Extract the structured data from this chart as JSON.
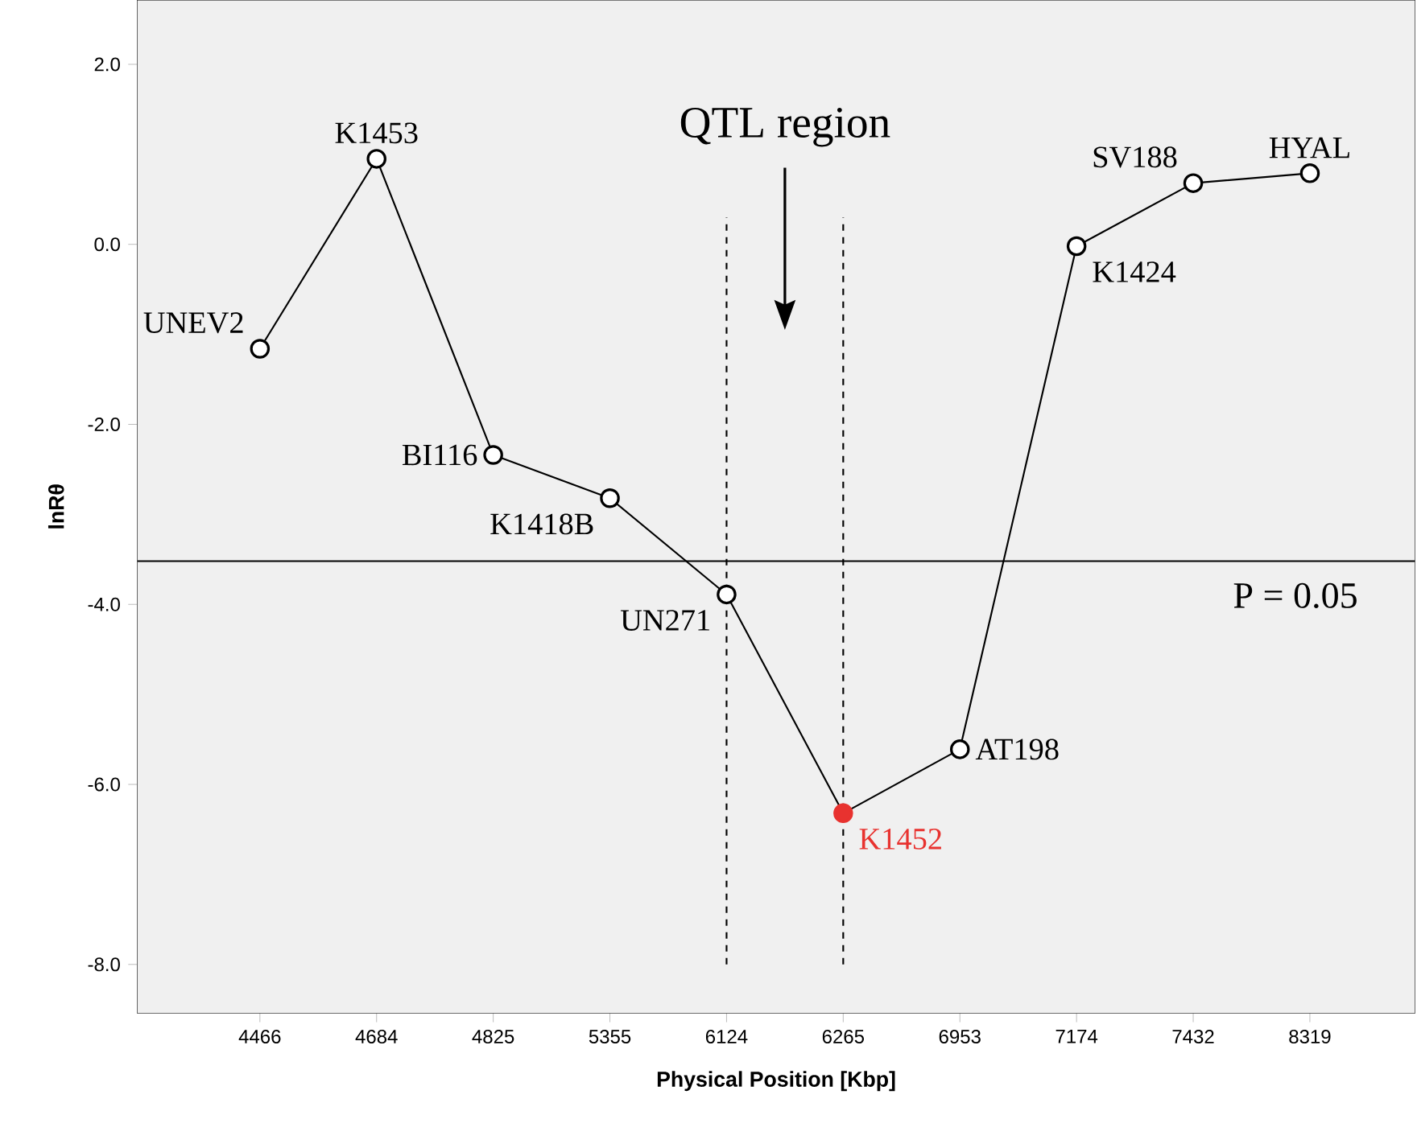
{
  "chart_data": {
    "type": "line",
    "xlabel": "Physical Position [Kbp]",
    "ylabel": "lnRθ",
    "categories": [
      "4466",
      "4684",
      "4825",
      "5355",
      "6124",
      "6265",
      "6953",
      "7174",
      "7432",
      "8319"
    ],
    "values": [
      -1.16,
      0.95,
      -2.34,
      -2.82,
      -3.89,
      -6.32,
      -5.61,
      -0.02,
      0.68,
      0.79
    ],
    "color": "#000000",
    "colors": [
      "#000000",
      "#000000",
      "#000000",
      "#000000",
      "#000000",
      "#e8322f",
      "#000000",
      "#000000",
      "#000000",
      "#000000"
    ],
    "marker": "circle",
    "ylim": [
      -8.54,
      2.71
    ],
    "yticks": [
      {
        "value": 2,
        "label": "2.0"
      },
      {
        "value": 0,
        "label": "0.0"
      },
      {
        "value": -2,
        "label": "-2.0"
      },
      {
        "value": -4,
        "label": "-4.0"
      },
      {
        "value": -6,
        "label": "-6.0"
      },
      {
        "value": -8,
        "label": "-8.0"
      }
    ],
    "ref_lines": [
      {
        "axis": "y",
        "value": -3.52
      },
      {
        "axis": "x",
        "value": "6124",
        "line_style": "dashed"
      },
      {
        "axis": "x",
        "value": "6265",
        "line_style": "dashed"
      }
    ],
    "annotations": [
      {
        "text": "UNEV2",
        "x": "4466",
        "y": -1.16
      },
      {
        "text": "K1453",
        "x": "4684",
        "y": 0.95
      },
      {
        "text": "BI116",
        "x": "4825",
        "y": -2.34
      },
      {
        "text": "K1418B",
        "x": "5355",
        "y": -2.82
      },
      {
        "text": "UN271",
        "x": "6124",
        "y": -3.89
      },
      {
        "text": "K1452",
        "x": "6265",
        "y": -6.32
      },
      {
        "text": "AT198",
        "x": "6953",
        "y": -5.61
      },
      {
        "text": "K1424",
        "x": "7174",
        "y": -0.02
      },
      {
        "text": "SV188",
        "x": "7432",
        "y": 0.68
      },
      {
        "text": "HYAL",
        "x": "8319",
        "y": 0.79
      },
      "QTL region",
      "P = 0.05"
    ]
  }
}
